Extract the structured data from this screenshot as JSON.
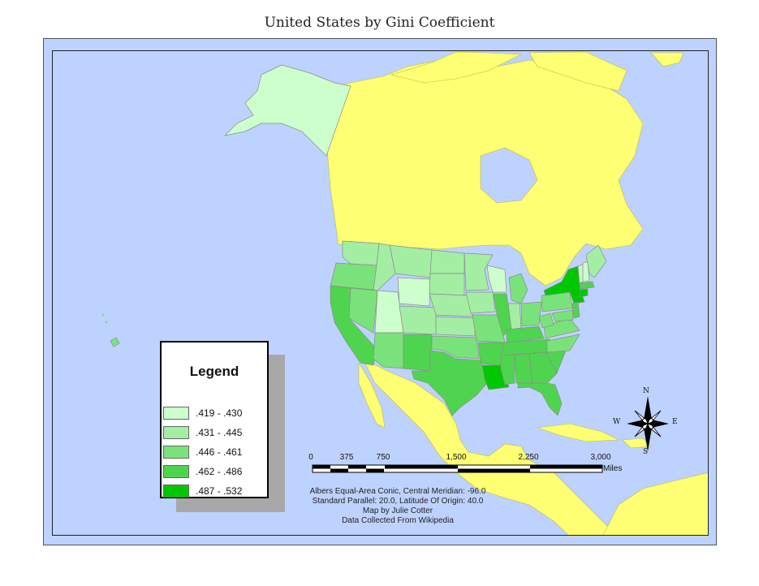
{
  "title": "United States by Gini Coefficient",
  "colors": {
    "ocean": "#bed2ff",
    "land": "#ffff73",
    "class1": "#ccffcc",
    "class2": "#a3eea3",
    "class3": "#7ae27a",
    "class4": "#4fd44f",
    "class5": "#00c800",
    "border": "#8c8c8c"
  },
  "legend": {
    "title": "Legend",
    "items": [
      {
        "label": ".419 - .430",
        "color": "#ccffcc"
      },
      {
        "label": ".431 - .445",
        "color": "#a3eea3"
      },
      {
        "label": ".446 - .461",
        "color": "#7ae27a"
      },
      {
        "label": ".462 - .486",
        "color": "#4fd44f"
      },
      {
        "label": ".487 - .532",
        "color": "#00c800"
      }
    ]
  },
  "scale_bar": {
    "ticks": [
      "0",
      "375",
      "750",
      "1,500",
      "2,250",
      "3,000"
    ],
    "unit": "Miles"
  },
  "compass": {
    "n": "N",
    "s": "S",
    "e": "E",
    "w": "W"
  },
  "notes": [
    "Albers Equal-Area Conic, Central Meridian: -96.0",
    "Standard Parallel: 20.0, Latitude Of Origin: 40.0",
    "Map by Julie Cotter",
    "Data Collected From Wikipedia"
  ]
}
